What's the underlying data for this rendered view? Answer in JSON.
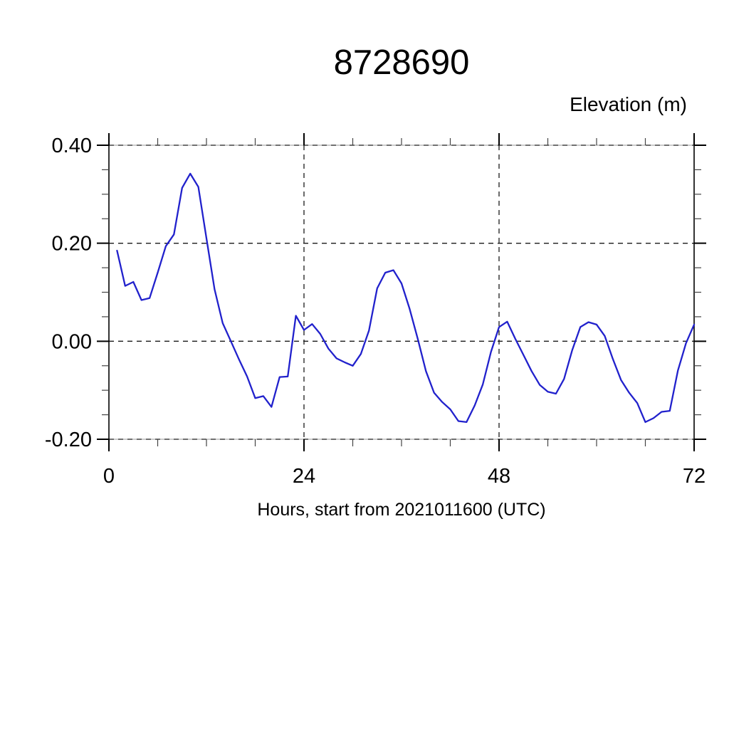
{
  "header": {
    "title": "8728690"
  },
  "labels": {
    "y_unit": "Elevation (m)",
    "x_axis": "Hours, start from 2021011600 (UTC)"
  },
  "chart_data": {
    "type": "line",
    "title": "8728690",
    "ylabel": "Elevation (m)",
    "xlabel": "Hours, start from 2021011600 (UTC)",
    "xlim": [
      0,
      72
    ],
    "ylim": [
      -0.2,
      0.4
    ],
    "xticks": [
      0,
      24,
      48,
      72
    ],
    "xtick_labels": [
      "0",
      "24",
      "48",
      "72"
    ],
    "yticks": [
      0.4,
      0.2,
      0.0,
      -0.2
    ],
    "ytick_labels": [
      "0.40",
      "0.20",
      "0.00",
      "-0.20"
    ],
    "x_minor_interval": 6,
    "y_minor_interval": 0.05,
    "grid": "dashed-at-major-ticks",
    "legend": "none",
    "line_color": "#2121cc",
    "frame_color": "#000000",
    "series": [
      {
        "name": "elevation",
        "x": [
          1,
          2,
          3,
          4,
          5,
          6,
          7,
          8,
          9,
          10,
          11,
          12,
          13,
          14,
          15,
          16,
          17,
          18,
          19,
          20,
          21,
          22,
          23,
          24,
          25,
          26,
          27,
          28,
          29,
          30,
          31,
          32,
          33,
          34,
          35,
          36,
          37,
          38,
          39,
          40,
          41,
          42,
          43,
          44,
          45,
          46,
          47,
          48,
          49,
          50,
          51,
          52,
          53,
          54,
          55,
          56,
          57,
          58,
          59,
          60,
          61,
          62,
          63,
          64,
          65,
          66,
          67,
          68,
          69,
          70,
          71,
          72
        ],
        "values": [
          0.185,
          0.113,
          0.121,
          0.084,
          0.088,
          0.14,
          0.194,
          0.218,
          0.313,
          0.342,
          0.315,
          0.21,
          0.106,
          0.037,
          0.0,
          -0.037,
          -0.072,
          -0.116,
          -0.112,
          -0.134,
          -0.073,
          -0.072,
          0.052,
          0.023,
          0.035,
          0.015,
          -0.015,
          -0.035,
          -0.043,
          -0.05,
          -0.026,
          0.022,
          0.108,
          0.14,
          0.145,
          0.118,
          0.066,
          0.005,
          -0.061,
          -0.105,
          -0.124,
          -0.139,
          -0.163,
          -0.165,
          -0.131,
          -0.088,
          -0.022,
          0.029,
          0.04,
          0.005,
          -0.028,
          -0.061,
          -0.089,
          -0.103,
          -0.107,
          -0.077,
          -0.018,
          0.029,
          0.039,
          0.034,
          0.011,
          -0.036,
          -0.079,
          -0.105,
          -0.126,
          -0.165,
          -0.157,
          -0.144,
          -0.142,
          -0.06,
          -0.004,
          0.034
        ]
      }
    ]
  }
}
